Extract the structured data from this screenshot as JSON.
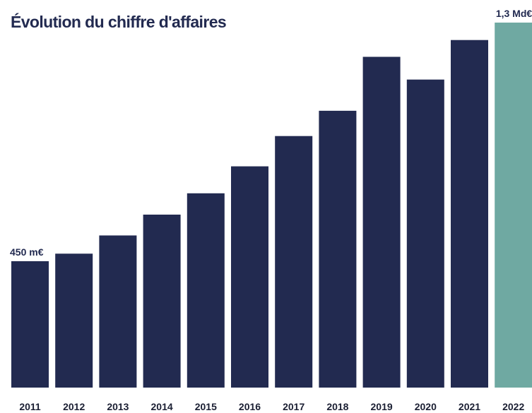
{
  "chart_data": {
    "type": "bar",
    "title": "Évolution du chiffre d'affaires",
    "xlabel": "",
    "ylabel": "",
    "categories": [
      "2011",
      "2012",
      "2013",
      "2014",
      "2015",
      "2016",
      "2017",
      "2018",
      "2019",
      "2020",
      "2021",
      "2022"
    ],
    "values": [
      450,
      477,
      542,
      616,
      692,
      788,
      896,
      986,
      1178,
      1097,
      1238,
      1300
    ],
    "ylim": [
      0,
      1300
    ],
    "grid": false,
    "colors": {
      "default": "#222a50",
      "highlight": "#6fa9a2"
    },
    "highlight_index": 11,
    "data_labels": [
      {
        "index": 0,
        "text": "450 m€"
      },
      {
        "index": 11,
        "text": "1,3 Md€"
      }
    ]
  }
}
